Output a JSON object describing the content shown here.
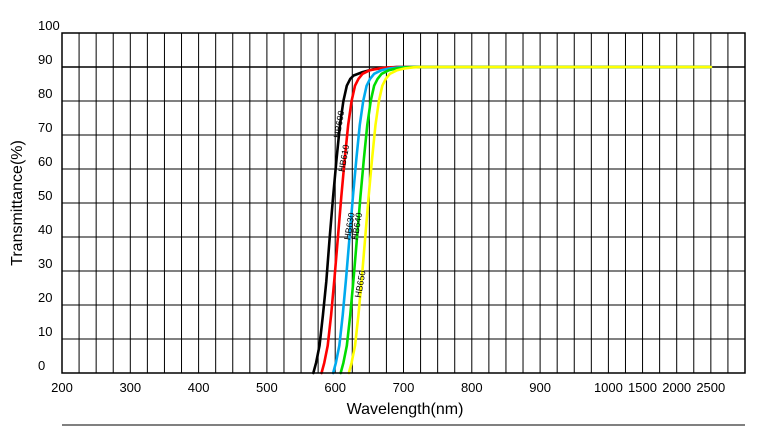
{
  "chart_data": {
    "type": "line",
    "title": "",
    "xlabel": "Wavelength(nm)",
    "ylabel": "Transmittance(%)",
    "x_ticks": [
      "200",
      "300",
      "400",
      "500",
      "600",
      "700",
      "800",
      "900",
      "1000",
      "1500",
      "2000",
      "2500"
    ],
    "y_ticks": [
      "0",
      "10",
      "20",
      "30",
      "40",
      "50",
      "60",
      "70",
      "80",
      "90",
      "100"
    ],
    "ylim": [
      0,
      100
    ],
    "x_scale_note": "segmented axis: 100 nm per major division up to 1000, then 500 nm per division",
    "grid": true,
    "series": [
      {
        "name": "HB600",
        "color": "#000000",
        "x": [
          568,
          572,
          577,
          582,
          587,
          592,
          597,
          602,
          607,
          612,
          617,
          622,
          627,
          640,
          655,
          670,
          690,
          720,
          2500
        ],
        "y": [
          0,
          3,
          8,
          17,
          27,
          40,
          52,
          63,
          73,
          80,
          84.5,
          86.5,
          87.5,
          88.5,
          89.3,
          89.7,
          90,
          90,
          90
        ]
      },
      {
        "name": "HB610",
        "color": "#ff0000",
        "x": [
          580,
          584,
          589,
          594,
          599,
          604,
          609,
          614,
          619,
          624,
          629,
          634,
          640,
          650,
          665,
          680,
          700,
          725,
          2500
        ],
        "y": [
          0,
          3,
          8,
          17,
          28,
          40,
          52,
          63,
          73,
          80,
          84.5,
          86.5,
          88,
          89,
          89.6,
          89.9,
          90,
          90,
          90
        ]
      },
      {
        "name": "HB630",
        "color": "#00aaee",
        "x": [
          597,
          601,
          606,
          611,
          616,
          621,
          626,
          631,
          636,
          641,
          646,
          651,
          657,
          667,
          680,
          695,
          712,
          730,
          2500
        ],
        "y": [
          0,
          3,
          8,
          17,
          28,
          40,
          52,
          63,
          73,
          80,
          84.5,
          86.5,
          88,
          89,
          89.6,
          89.9,
          90,
          90,
          90
        ]
      },
      {
        "name": "HB640",
        "color": "#00dd00",
        "x": [
          608,
          612,
          617,
          622,
          627,
          632,
          637,
          642,
          647,
          652,
          657,
          662,
          668,
          678,
          690,
          705,
          718,
          732,
          2500
        ],
        "y": [
          0,
          3,
          8,
          17,
          28,
          40,
          52,
          63,
          73,
          80,
          84.5,
          86.5,
          88,
          89,
          89.6,
          89.9,
          90,
          90,
          90
        ]
      },
      {
        "name": "HB650",
        "color": "#ffff00",
        "x": [
          620,
          624,
          629,
          634,
          639,
          644,
          649,
          654,
          659,
          664,
          669,
          674,
          680,
          690,
          702,
          715,
          725,
          735,
          2500
        ],
        "y": [
          0,
          3,
          8,
          17,
          28,
          40,
          52,
          63,
          73,
          80,
          84.5,
          86.5,
          88,
          89,
          89.6,
          89.9,
          90,
          90,
          90
        ]
      }
    ],
    "annotations": [
      {
        "text": "HB600",
        "series": "HB600",
        "at_y": 73
      },
      {
        "text": "HB610",
        "series": "HB610",
        "at_y": 63
      },
      {
        "text": "HB630",
        "series": "HB630",
        "at_y": 43
      },
      {
        "text": "HB640",
        "series": "HB640",
        "at_y": 43
      },
      {
        "text": "HB650",
        "series": "HB650",
        "at_y": 26
      }
    ]
  }
}
